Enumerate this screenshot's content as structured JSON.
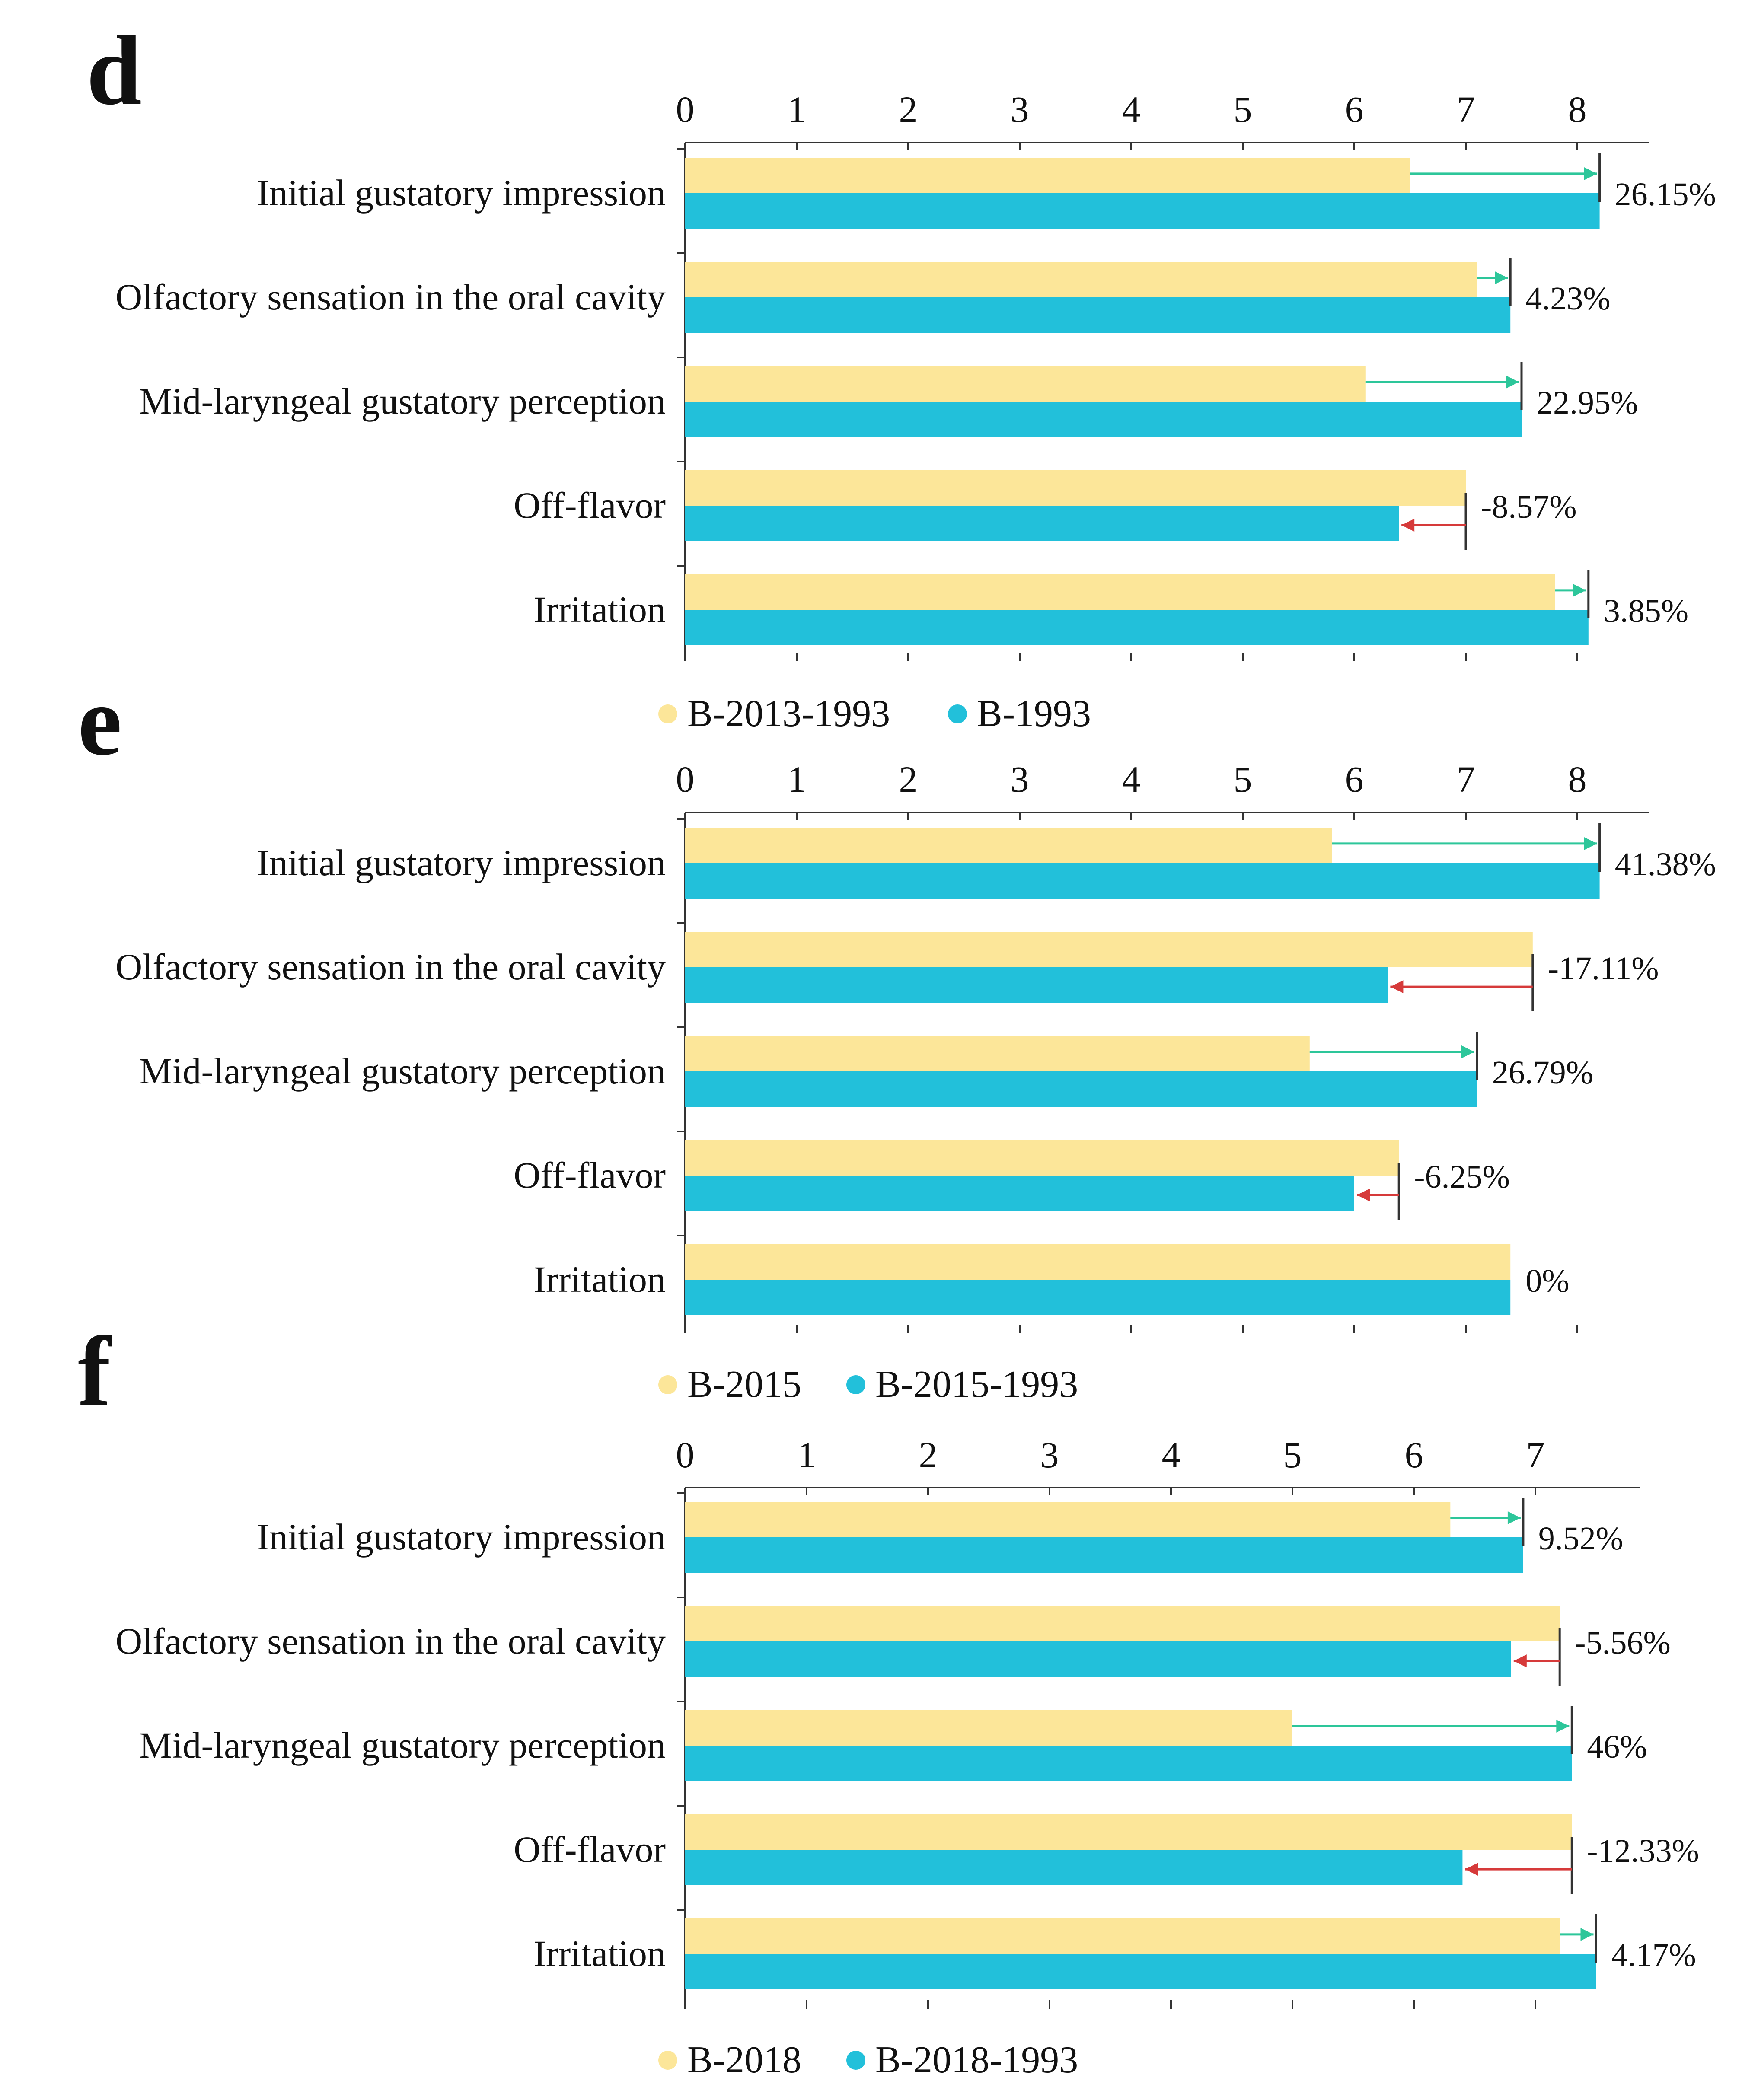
{
  "colors": {
    "series_a": "#FCE699",
    "series_b": "#22C0DA",
    "increase_arrow": "#2DC69A",
    "decrease_arrow": "#D63A3A",
    "axis": "#333333",
    "text": "#111111"
  },
  "chart_data": [
    {
      "type": "bar",
      "orientation": "horizontal",
      "panel": "d",
      "categories": [
        "Initial gustatory impression",
        "Olfactory sensation in the oral cavity",
        "Mid-laryngeal gustatory perception",
        "Off-flavor",
        "Irritation"
      ],
      "series": [
        {
          "name": "B-2013-1993",
          "values": [
            6.5,
            7.1,
            6.1,
            7.0,
            7.8
          ]
        },
        {
          "name": "B-1993",
          "values": [
            8.2,
            7.4,
            7.5,
            6.4,
            8.1
          ]
        }
      ],
      "change_labels": [
        "26.15%",
        "4.23%",
        "22.95%",
        "-8.57%",
        "3.85%"
      ],
      "xticks": [
        "0",
        "1",
        "2",
        "3",
        "4",
        "5",
        "6",
        "7",
        "8"
      ],
      "xlim": [
        0,
        8.6
      ],
      "legend": [
        "B-2013-1993",
        "B-1993"
      ],
      "legend_position": "bottom"
    },
    {
      "type": "bar",
      "orientation": "horizontal",
      "panel": "e",
      "categories": [
        "Initial gustatory impression",
        "Olfactory sensation in the oral cavity",
        "Mid-laryngeal gustatory perception",
        "Off-flavor",
        "Irritation"
      ],
      "series": [
        {
          "name": "B-2015",
          "values": [
            5.8,
            7.6,
            5.6,
            6.4,
            7.4
          ]
        },
        {
          "name": "B-2015-1993",
          "values": [
            8.2,
            6.3,
            7.1,
            6.0,
            7.4
          ]
        }
      ],
      "change_labels": [
        "41.38%",
        "-17.11%",
        "26.79%",
        "-6.25%",
        "0%"
      ],
      "xticks": [
        "0",
        "1",
        "2",
        "3",
        "4",
        "5",
        "6",
        "7",
        "8"
      ],
      "xlim": [
        0,
        8.6
      ],
      "legend": [
        "B-2015",
        "B-2015-1993"
      ],
      "legend_position": "bottom"
    },
    {
      "type": "bar",
      "orientation": "horizontal",
      "panel": "f",
      "categories": [
        "Initial gustatory impression",
        "Olfactory sensation in the oral cavity",
        "Mid-laryngeal gustatory perception",
        "Off-flavor",
        "Irritation"
      ],
      "series": [
        {
          "name": "B-2018",
          "values": [
            6.3,
            7.2,
            5.0,
            7.3,
            7.2
          ]
        },
        {
          "name": "B-2018-1993",
          "values": [
            6.9,
            6.8,
            7.3,
            6.4,
            7.5
          ]
        }
      ],
      "change_labels": [
        "9.52%",
        "-5.56%",
        "46%",
        "-12.33%",
        "4.17%"
      ],
      "xticks": [
        "0",
        "1",
        "2",
        "3",
        "4",
        "5",
        "6",
        "7"
      ],
      "xlim": [
        0,
        7.9
      ],
      "legend": [
        "B-2018",
        "B-2018-1993"
      ],
      "legend_position": "bottom"
    }
  ]
}
